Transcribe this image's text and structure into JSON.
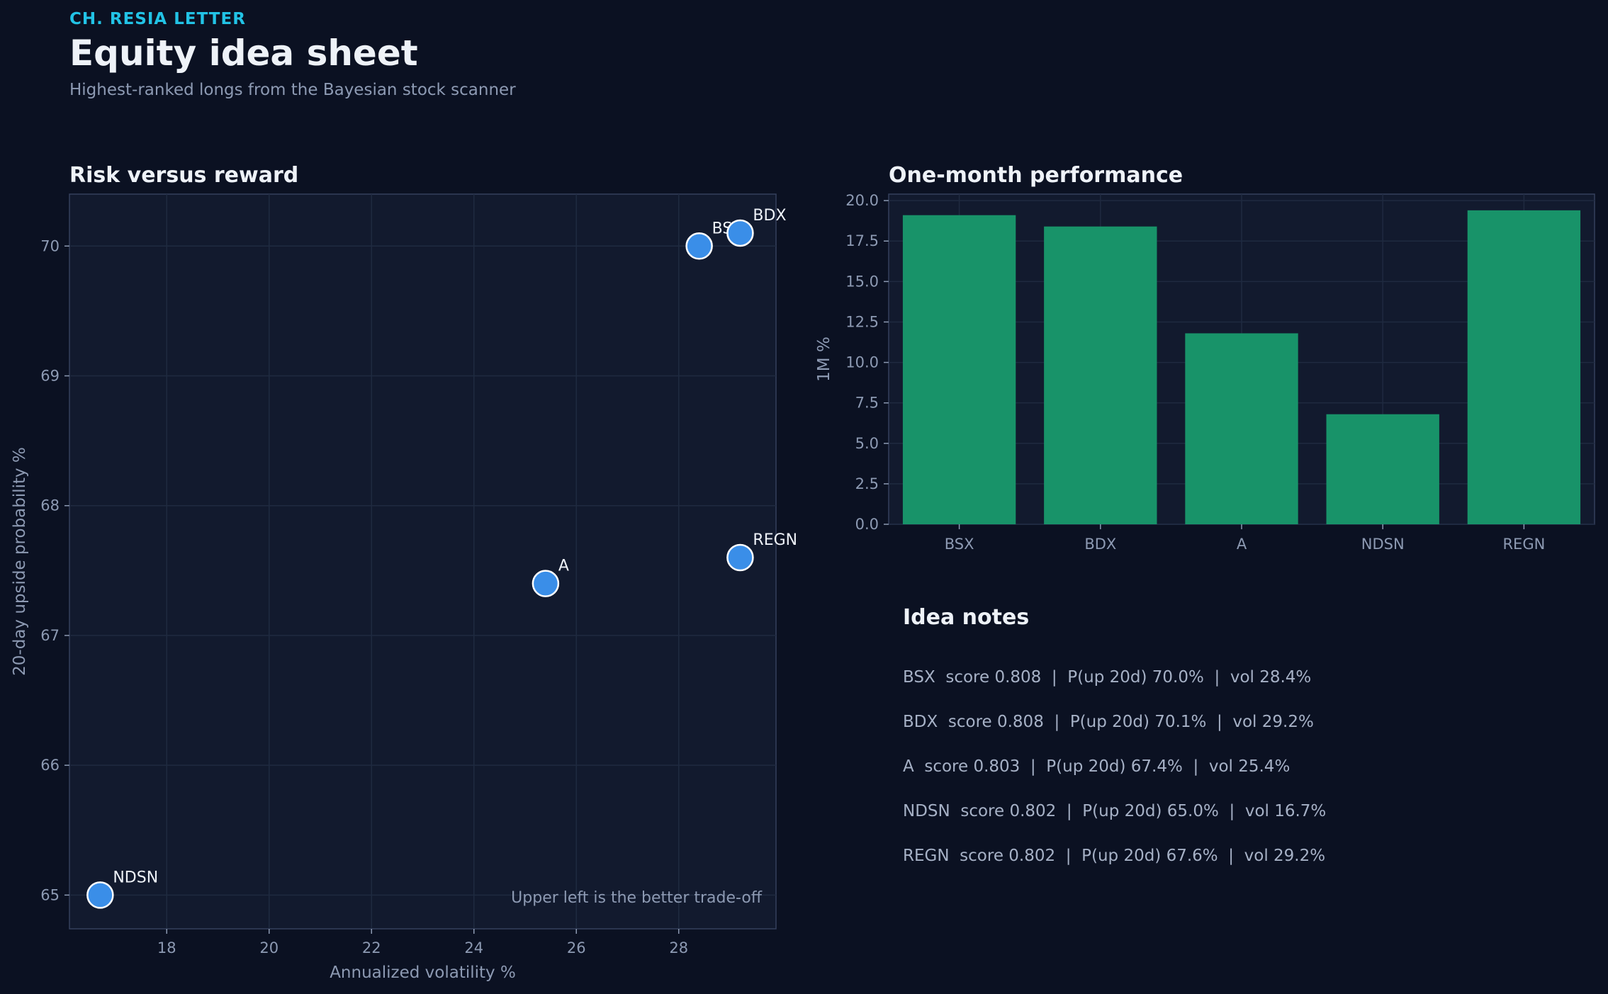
{
  "header": {
    "kicker": "CH. RESIA LETTER",
    "title": "Equity idea sheet",
    "subtitle": "Highest-ranked longs from the Bayesian stock scanner"
  },
  "colors": {
    "background": "#0b1122",
    "panel": "#121a2e",
    "point": "#3a8ee8",
    "bar": "#189369",
    "accent": "#22c3e6"
  },
  "chart_data": [
    {
      "type": "scatter",
      "title": "Risk versus reward",
      "xlabel": "Annualized volatility %",
      "ylabel": "20-day upside probability %",
      "xlim": [
        16.1,
        29.9
      ],
      "ylim": [
        64.74,
        70.4
      ],
      "xticks": [
        18,
        20,
        22,
        24,
        26,
        28
      ],
      "yticks": [
        65,
        66,
        67,
        68,
        69,
        70
      ],
      "grid": true,
      "points": [
        {
          "label": "BSX",
          "x": 28.4,
          "y": 70.0
        },
        {
          "label": "BDX",
          "x": 29.2,
          "y": 70.1
        },
        {
          "label": "A",
          "x": 25.4,
          "y": 67.4
        },
        {
          "label": "NDSN",
          "x": 16.7,
          "y": 65.0
        },
        {
          "label": "REGN",
          "x": 29.2,
          "y": 67.6
        }
      ],
      "annotation": "Upper left is the better trade-off"
    },
    {
      "type": "bar",
      "title": "One-month performance",
      "xlabel": "",
      "ylabel": "1M %",
      "categories": [
        "BSX",
        "BDX",
        "A",
        "NDSN",
        "REGN"
      ],
      "values": [
        19.1,
        18.4,
        11.8,
        6.8,
        19.4
      ],
      "ylim": [
        0,
        20.4
      ],
      "yticks": [
        0.0,
        2.5,
        5.0,
        7.5,
        10.0,
        12.5,
        15.0,
        17.5,
        20.0
      ],
      "grid": true
    }
  ],
  "notes": {
    "title": "Idea notes",
    "lines": [
      "BSX  score 0.808  |  P(up 20d) 70.0%  |  vol 28.4%",
      "BDX  score 0.808  |  P(up 20d) 70.1%  |  vol 29.2%",
      "A  score 0.803  |  P(up 20d) 67.4%  |  vol 25.4%",
      "NDSN  score 0.802  |  P(up 20d) 65.0%  |  vol 16.7%",
      "REGN  score 0.802  |  P(up 20d) 67.6%  |  vol 29.2%"
    ]
  }
}
